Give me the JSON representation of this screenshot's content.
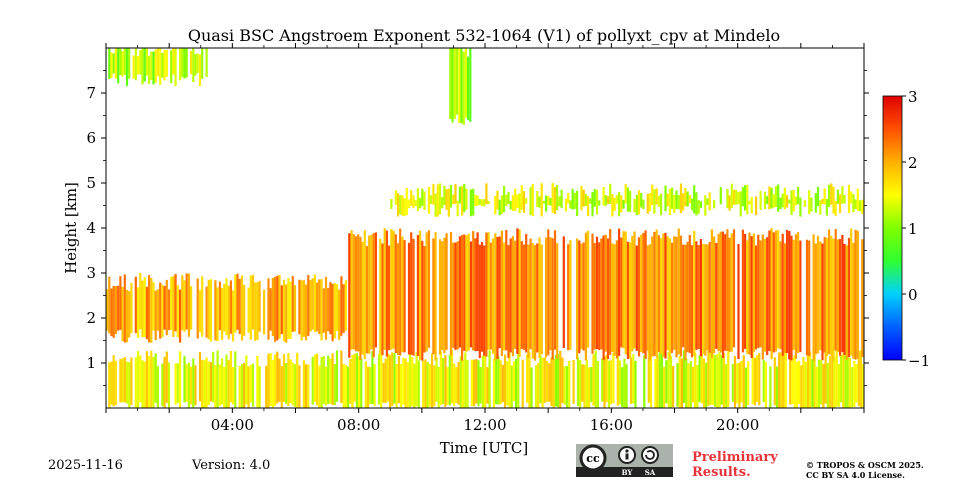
{
  "chart_data": {
    "type": "heatmap",
    "title": "Quasi BSC Angstroem Exponent 532-1064 (V1) of pollyxt_cpv at Mindelo",
    "xlabel": "Time [UTC]",
    "ylabel": "Height [km]",
    "x_unit": "hours UTC",
    "xlim": [
      0,
      24
    ],
    "ylim": [
      0,
      8
    ],
    "x_ticks": [
      {
        "value": 4,
        "label": "04:00"
      },
      {
        "value": 8,
        "label": "08:00"
      },
      {
        "value": 12,
        "label": "12:00"
      },
      {
        "value": 16,
        "label": "16:00"
      },
      {
        "value": 20,
        "label": "20:00"
      }
    ],
    "y_ticks": [
      {
        "value": 1,
        "label": "1"
      },
      {
        "value": 2,
        "label": "2"
      },
      {
        "value": 3,
        "label": "3"
      },
      {
        "value": 4,
        "label": "4"
      },
      {
        "value": 5,
        "label": "5"
      },
      {
        "value": 6,
        "label": "6"
      },
      {
        "value": 7,
        "label": "7"
      }
    ],
    "colorbar": {
      "min": -1,
      "max": 3,
      "colormap": "jet",
      "ticks": [
        {
          "value": 3,
          "label": "3"
        },
        {
          "value": 2,
          "label": "2"
        },
        {
          "value": 1,
          "label": "1"
        },
        {
          "value": 0,
          "label": "0"
        },
        {
          "value": -1,
          "label": "−1"
        }
      ]
    },
    "regions": [
      {
        "name": "boundary layer",
        "t0": 0.0,
        "t1": 24.0,
        "h0": 0.0,
        "h1": 1.1,
        "value": 1.5
      },
      {
        "name": "morning dust layer",
        "t0": 0.0,
        "t1": 7.6,
        "h0": 1.6,
        "h1": 2.8,
        "value": 2.0
      },
      {
        "name": "main aerosol layer",
        "t0": 7.6,
        "t1": 24.0,
        "h0": 1.2,
        "h1": 3.8,
        "value": 2.2
      },
      {
        "name": "upper layer",
        "t0": 9.0,
        "t1": 24.0,
        "h0": 4.4,
        "h1": 4.8,
        "value": 1.4
      },
      {
        "name": "high cloud early",
        "t0": 0.0,
        "t1": 3.2,
        "h0": 7.3,
        "h1": 8.0,
        "value": 1.2
      },
      {
        "name": "high cloud midday",
        "t0": 10.8,
        "t1": 11.6,
        "h0": 6.4,
        "h1": 8.0,
        "value": 1.1
      }
    ]
  },
  "footer": {
    "date": "2025-11-16",
    "version": "Version: 4.0",
    "license_badge": {
      "cc": "cc",
      "by": "BY",
      "sa": "SA"
    },
    "preliminary_line1": "Preliminary",
    "preliminary_line2": "Results.",
    "copyright_line1": "© TROPOS & OSCM 2025.",
    "copyright_line2": "CC BY SA 4.0 License."
  },
  "colors": {
    "preliminary": "#e8333a",
    "badge_bg": "#aab2ab",
    "badge_dark": "#222222"
  }
}
